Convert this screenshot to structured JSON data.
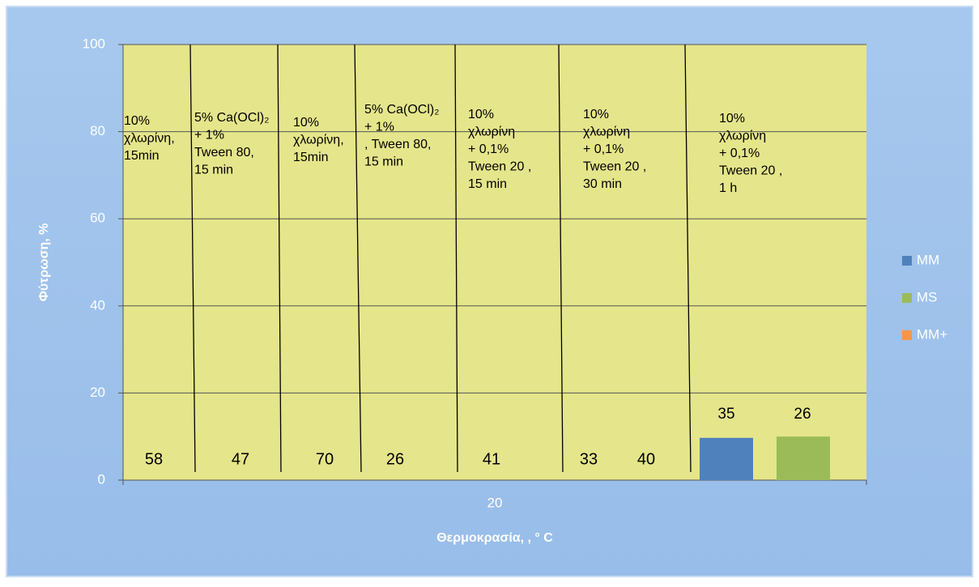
{
  "chart_data": {
    "type": "bar",
    "x_label": "Θερμοκρασία, ,   ° C",
    "y_label": "Φύτρωση, %",
    "categories": [
      "20"
    ],
    "series": [
      {
        "name": "MM",
        "color": "#4f81bd",
        "values": [
          9.7
        ]
      },
      {
        "name": "MS",
        "color": "#9bbb59",
        "values": [
          10
        ]
      },
      {
        "name": "MM+",
        "color": "#f79646",
        "values": [
          null
        ]
      }
    ],
    "ylim": [
      0,
      100
    ],
    "yticks": [
      0,
      20,
      40,
      60,
      80,
      100
    ],
    "grid": true,
    "legend": "right",
    "treatments": [
      [
        "10%",
        "χλωρίνη,",
        "15min"
      ],
      [
        "5% Ca(OCl)₂",
        "+ 1%",
        " Tween 80,",
        "15 min"
      ],
      [
        "10%",
        "χλωρίνη,",
        "15min"
      ],
      [
        "5% Ca(OCl)₂",
        "+ 1%",
        ", Tween 80,",
        "15 min"
      ],
      [
        "10%",
        "χλωρίνη",
        "+ 0,1%",
        " Tween 20 ,",
        " 15 min"
      ],
      [
        "10%",
        "χλωρίνη",
        "+ 0,1%",
        " Tween 20 ,",
        " 30  min"
      ],
      [
        "10%",
        "χλωρίνη",
        "+ 0,1%",
        " Tween 20 ,",
        " 1 h"
      ]
    ],
    "bottom_numbers": [
      "58",
      "47",
      "70",
      "26",
      "41",
      "33",
      "40"
    ],
    "bar_numbers": [
      "35",
      "26"
    ]
  }
}
